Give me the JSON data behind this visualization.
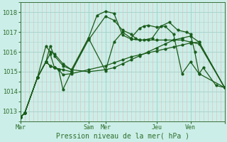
{
  "bg_color": "#cceee8",
  "grid_major_color": "#aad4ce",
  "grid_minor_color": "#f0a0a0",
  "line_color": "#1a5c1a",
  "tick_label_color": "#2a6e2a",
  "ylim": [
    1012.5,
    1018.5
  ],
  "yticks": [
    1013,
    1014,
    1015,
    1016,
    1017,
    1018
  ],
  "xlabel": "Pression niveau de la mer( hPa )",
  "xlim": [
    0,
    24
  ],
  "day_ticks_x": [
    0,
    8,
    10,
    16,
    20,
    24
  ],
  "day_labels": [
    "Mar",
    "Sam",
    "Mer",
    "Jeu",
    "Ven",
    ""
  ],
  "lines": [
    {
      "x": [
        0,
        0.5,
        2,
        3,
        3.5,
        4,
        5,
        6,
        8,
        10,
        11,
        12,
        13,
        13.5,
        14,
        14.5,
        15.5,
        16.5,
        17.5,
        18.5,
        19.5,
        20,
        20.5,
        21,
        21.5,
        23,
        24
      ],
      "y": [
        1012.7,
        1012.9,
        1014.7,
        1015.5,
        1015.3,
        1015.2,
        1015.1,
        1015.0,
        1016.6,
        1017.8,
        1017.6,
        1017.1,
        1016.9,
        1016.7,
        1016.6,
        1016.6,
        1016.7,
        1017.3,
        1017.5,
        1017.1,
        1017.0,
        1016.9,
        1016.0,
        1014.9,
        1015.2,
        1014.3,
        1014.2
      ]
    },
    {
      "x": [
        0,
        0.5,
        2,
        3,
        3.5,
        4,
        5,
        6,
        8,
        10,
        11,
        12,
        13,
        14,
        15,
        16,
        17,
        18,
        19,
        20,
        21,
        24
      ],
      "y": [
        1012.7,
        1012.9,
        1014.7,
        1016.3,
        1016.0,
        1015.9,
        1015.4,
        1015.1,
        1015.0,
        1015.1,
        1015.2,
        1015.4,
        1015.6,
        1015.8,
        1016.0,
        1016.2,
        1016.4,
        1016.6,
        1016.7,
        1016.8,
        1016.5,
        1014.2
      ]
    },
    {
      "x": [
        0,
        0.5,
        2,
        3,
        3.5,
        4,
        5,
        6,
        8,
        9,
        10,
        11,
        12,
        13,
        14,
        15,
        16,
        17,
        18,
        19,
        20,
        21,
        24
      ],
      "y": [
        1012.7,
        1012.9,
        1014.7,
        1015.5,
        1016.3,
        1015.8,
        1015.3,
        1015.1,
        1016.7,
        1017.85,
        1018.05,
        1017.95,
        1016.85,
        1016.65,
        1016.6,
        1016.6,
        1016.6,
        1016.6,
        1016.6,
        1016.6,
        1016.5,
        1016.4,
        1014.2
      ]
    },
    {
      "x": [
        0,
        0.5,
        2,
        3,
        3.5,
        4,
        4.5,
        5,
        6,
        8,
        10,
        11,
        12,
        13,
        14,
        15,
        16,
        17,
        18,
        19,
        20,
        21,
        24
      ],
      "y": [
        1012.7,
        1012.9,
        1014.7,
        1015.5,
        1015.3,
        1015.2,
        1015.1,
        1014.85,
        1014.9,
        1015.1,
        1015.3,
        1015.45,
        1015.6,
        1015.75,
        1015.85,
        1015.95,
        1016.05,
        1016.15,
        1016.25,
        1016.35,
        1016.45,
        1016.5,
        1014.2
      ]
    },
    {
      "x": [
        0,
        0.5,
        2,
        3,
        3.5,
        4,
        4.5,
        5,
        6,
        8,
        10,
        11,
        12,
        13,
        14,
        14.5,
        15,
        16,
        17,
        18,
        19,
        20,
        21,
        24
      ],
      "y": [
        1012.7,
        1012.9,
        1014.7,
        1015.5,
        1015.9,
        1015.2,
        1015.1,
        1014.1,
        1015.0,
        1016.7,
        1015.05,
        1016.5,
        1017.0,
        1016.7,
        1017.2,
        1017.3,
        1017.35,
        1017.25,
        1017.3,
        1016.9,
        1014.9,
        1015.5,
        1014.9,
        1014.2
      ]
    }
  ]
}
